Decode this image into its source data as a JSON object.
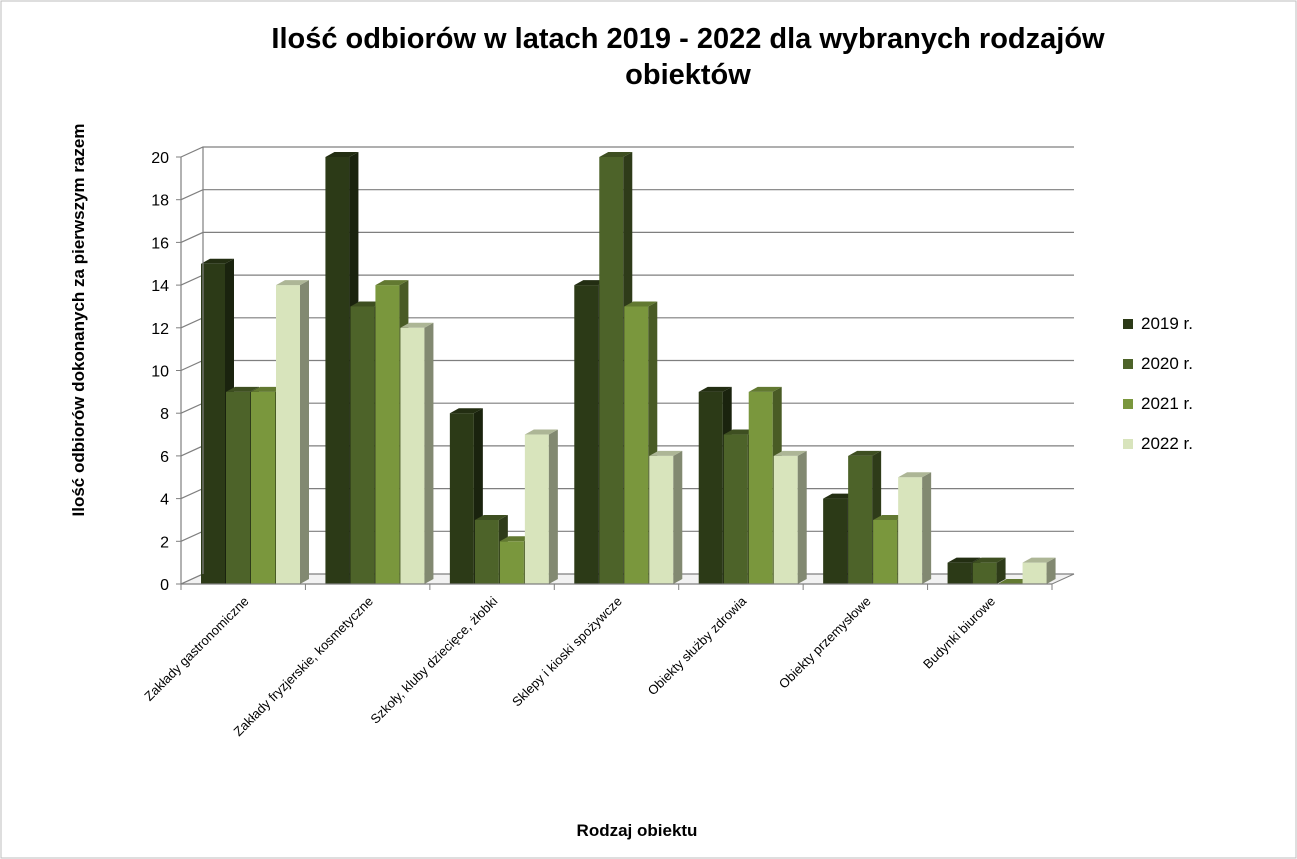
{
  "chart_data": {
    "type": "bar",
    "title_line1": "Ilość odbiorów w latach 2019 - 2022 dla wybranych rodzajów",
    "title_line2": "obiektów",
    "xlabel": "Rodzaj obiektu",
    "ylabel": "Ilość odbiorów dokonanych za pierwszym razem",
    "ylim": [
      0,
      20
    ],
    "yticks": [
      "0",
      "2",
      "4",
      "6",
      "8",
      "10",
      "12",
      "14",
      "16",
      "18",
      "20"
    ],
    "grid": true,
    "legend_position": "right",
    "categories": [
      "Zakłady gastronomiczne",
      "Zakłady fryzjerskie, kosmetyczne",
      "Szkoły, kluby dziecięce, żłobki",
      "Sklepy i kioski spożywcze",
      "Obiekty służby zdrowia",
      "Obiekty przemysłowe",
      "Budynki biurowe"
    ],
    "series": [
      {
        "name": "2019 r.",
        "color": "#2c3a17",
        "values": [
          15,
          20,
          8,
          14,
          9,
          4,
          1
        ]
      },
      {
        "name": "2020 r.",
        "color": "#4d6329",
        "values": [
          9,
          13,
          3,
          20,
          7,
          6,
          1
        ]
      },
      {
        "name": "2021 r.",
        "color": "#7a973d",
        "values": [
          9,
          14,
          2,
          13,
          9,
          3,
          0
        ]
      },
      {
        "name": "2022 r.",
        "color": "#d8e4bc",
        "values": [
          14,
          12,
          7,
          6,
          6,
          5,
          1
        ]
      }
    ]
  }
}
